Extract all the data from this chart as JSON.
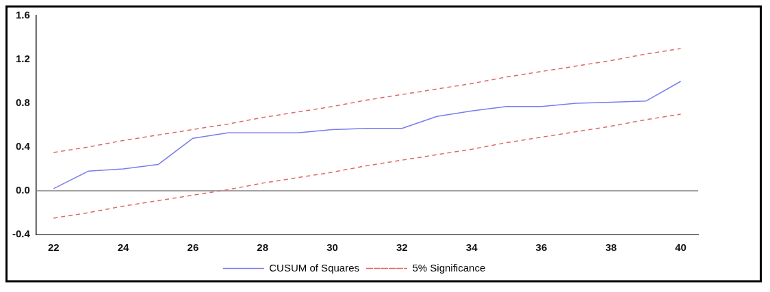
{
  "chart_data": {
    "type": "line",
    "categories": [
      "22",
      null,
      "24",
      null,
      "26",
      null,
      "28",
      null,
      "30",
      null,
      "32",
      null,
      "34",
      null,
      "36",
      null,
      "38",
      null,
      "40"
    ],
    "series": [
      {
        "name": "CUSUM of Squares",
        "color": "#7b7bf0",
        "line_style": "solid",
        "values": [
          0.02,
          0.18,
          0.2,
          0.24,
          0.48,
          0.53,
          0.53,
          0.53,
          0.56,
          0.57,
          0.57,
          0.68,
          0.73,
          0.77,
          0.77,
          0.8,
          0.81,
          0.82,
          1.0
        ]
      },
      {
        "name": "5% Significance",
        "color": "#e06666",
        "line_style": "dashed",
        "values": [
          0.35,
          0.4,
          0.46,
          0.51,
          0.56,
          0.61,
          0.67,
          0.72,
          0.77,
          0.83,
          0.88,
          0.93,
          0.98,
          1.04,
          1.09,
          1.14,
          1.19,
          1.25,
          1.3
        ]
      },
      {
        "color": "#e06666",
        "line_style": "dashed",
        "values": [
          -0.25,
          -0.2,
          -0.14,
          -0.09,
          -0.04,
          0.01,
          0.07,
          0.12,
          0.17,
          0.23,
          0.28,
          0.33,
          0.38,
          0.44,
          0.49,
          0.54,
          0.59,
          0.65,
          0.7
        ]
      }
    ],
    "ylim": [
      -0.4,
      1.6
    ],
    "yticks": [
      {
        "value": -0.4,
        "label": "-0.4"
      },
      {
        "value": 0,
        "label": "0.0"
      },
      0.4,
      0.8,
      1.2,
      1.6
    ],
    "ref_lines": [
      {
        "axis": "y",
        "value": 0,
        "color": "#808080"
      }
    ],
    "grid": false,
    "legend": "bottom",
    "marker": "none"
  }
}
